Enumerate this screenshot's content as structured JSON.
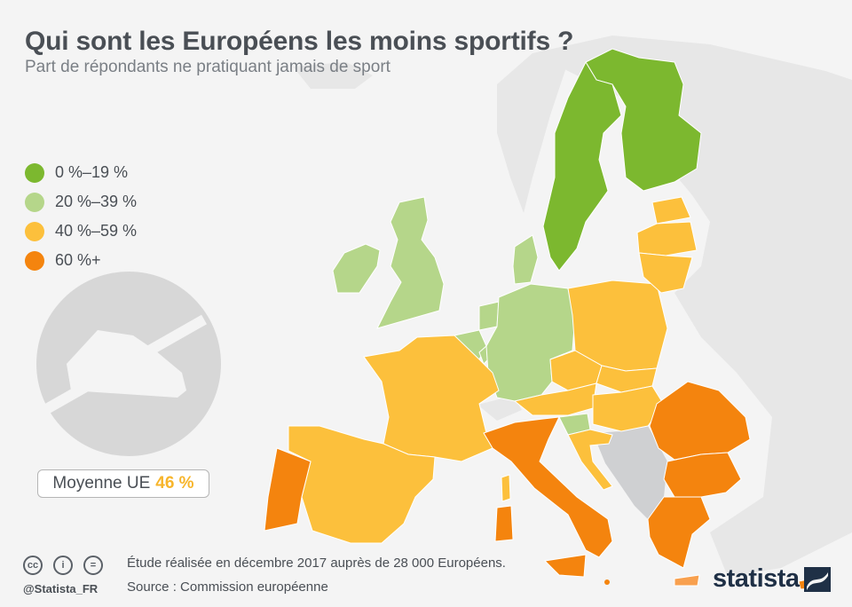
{
  "title": "Qui sont les Européens les moins sportifs ?",
  "subtitle": "Part de répondants ne pratiquant jamais de sport",
  "legend": [
    {
      "label": "0 %–19 %",
      "color": "#7cb82f"
    },
    {
      "label": "20 %–39 %",
      "color": "#b5d68a"
    },
    {
      "label": "40 %–59 %",
      "color": "#fcc03c"
    },
    {
      "label": "60 %+",
      "color": "#f4840e"
    }
  ],
  "average": {
    "label": "Moyenne UE",
    "value": "46 %"
  },
  "colors": {
    "non_eu": "#e7e7e7",
    "no_data": "#cfd0d2",
    "cat1": "#7cb82f",
    "cat2": "#b5d68a",
    "cat3": "#fcc03c",
    "cat4": "#f4840e",
    "cat4_light": "#f8a04e",
    "icon": "#d7d7d7"
  },
  "countries": {
    "finland": "0 %–19 %",
    "sweden": "0 %–19 %",
    "ireland": "20 %–39 %",
    "uk": "20 %–39 %",
    "denmark": "20 %–39 %",
    "germany": "20 %–39 %",
    "netherlands": "20 %–39 %",
    "belgium": "20 %–39 %",
    "luxembourg": "20 %–39 %",
    "slovenia": "20 %–39 %",
    "estonia": "40 %–59 %",
    "latvia": "40 %–59 %",
    "lithuania": "40 %–59 %",
    "poland": "40 %–59 %",
    "czechia": "40 %–59 %",
    "slovakia": "40 %–59 %",
    "austria": "40 %–59 %",
    "hungary": "40 %–59 %",
    "croatia": "40 %–59 %",
    "france": "40 %–59 %",
    "spain": "40 %–59 %",
    "corsica": "40 %–59 %",
    "portugal": "60 %+",
    "italy": "60 %+",
    "sardinia": "60 %+",
    "sicily": "60 %+",
    "romania": "60 %+",
    "bulgaria": "60 %+",
    "greece": "60 %+",
    "malta": "60 %+",
    "cyprus": "60 %+"
  },
  "footer": {
    "license_cc": "cc",
    "license_by": "i",
    "license_nd": "=",
    "handle": "@Statista_FR",
    "note": "Étude réalisée en décembre 2017 auprès de 28 000 Européens.",
    "source": "Source : Commission européenne",
    "brand": "statista"
  }
}
